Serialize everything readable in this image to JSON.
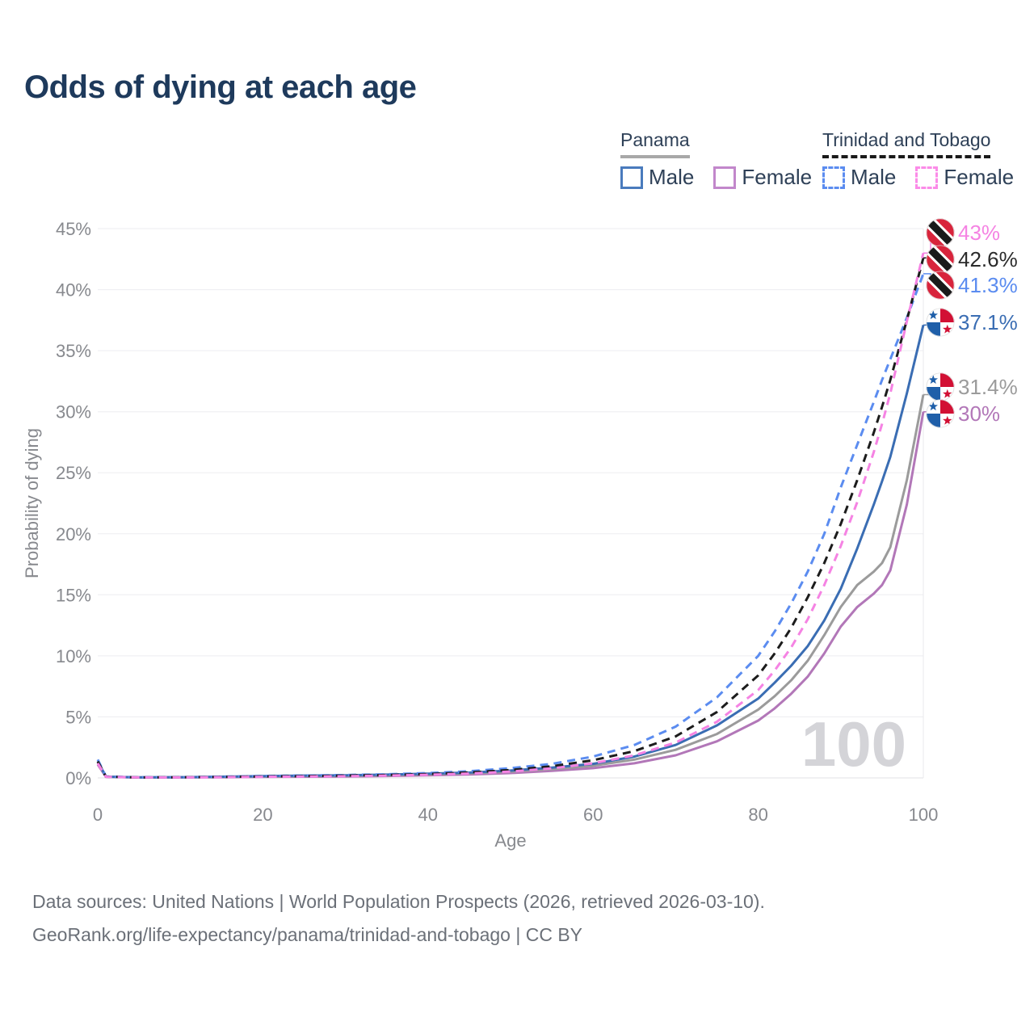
{
  "title": "Odds of dying at each age",
  "legend": {
    "groups": [
      {
        "label": "Panama",
        "line_style": "solid",
        "underline_color": "#a8a8a8",
        "items": [
          {
            "label": "Male",
            "color": "#4a7bbd"
          },
          {
            "label": "Female",
            "color": "#c287cb"
          }
        ]
      },
      {
        "label": "Trinidad and Tobago",
        "line_style": "dashed",
        "underline_color": "#1a1a1a",
        "items": [
          {
            "label": "Male",
            "color": "#5b8cf0"
          },
          {
            "label": "Female",
            "color": "#fb8be8"
          }
        ]
      }
    ]
  },
  "chart_data": {
    "type": "line",
    "title": "Odds of dying at each age",
    "xlabel": "Age",
    "ylabel": "Probability of dying",
    "xlim": [
      0,
      100
    ],
    "ylim": [
      0,
      45
    ],
    "xticks": [
      0,
      20,
      40,
      60,
      80,
      100
    ],
    "yticks": [
      0,
      5,
      10,
      15,
      20,
      25,
      30,
      35,
      40,
      45
    ],
    "ytick_suffix": "%",
    "grid": "horizontal",
    "legend_position": "top-right",
    "hover_age_label": "100",
    "x": [
      0,
      1,
      5,
      10,
      15,
      20,
      25,
      30,
      35,
      40,
      45,
      50,
      55,
      60,
      65,
      70,
      75,
      80,
      82,
      84,
      86,
      88,
      90,
      92,
      94,
      95,
      96,
      98,
      100
    ],
    "series": [
      {
        "id": "tt-female",
        "name": "Trinidad and Tobago — Female",
        "country": "tt",
        "color": "#f583e3",
        "label_color": "#f583e3",
        "dash": true,
        "end_label": "43%",
        "end_value": 43,
        "values": [
          1.2,
          0.09,
          0.04,
          0.04,
          0.06,
          0.09,
          0.11,
          0.14,
          0.19,
          0.26,
          0.36,
          0.52,
          0.78,
          1.2,
          1.85,
          2.9,
          4.6,
          7.2,
          8.8,
          10.7,
          13.0,
          15.8,
          19.0,
          22.6,
          26.7,
          29.0,
          31.5,
          37.4,
          43.0
        ]
      },
      {
        "id": "tt-both",
        "name": "Trinidad and Tobago — Both sexes",
        "country": "tt",
        "color": "#1c1c1c",
        "label_color": "#2b2b2b",
        "dash": true,
        "end_label": "42.6%",
        "end_value": 42.6,
        "values": [
          1.35,
          0.1,
          0.04,
          0.05,
          0.08,
          0.12,
          0.15,
          0.19,
          0.24,
          0.32,
          0.45,
          0.65,
          0.95,
          1.45,
          2.2,
          3.4,
          5.4,
          8.4,
          10.2,
          12.3,
          14.8,
          17.6,
          20.8,
          24.4,
          28.3,
          30.4,
          32.6,
          37.5,
          42.6
        ]
      },
      {
        "id": "tt-male",
        "name": "Trinidad and Tobago — Male",
        "country": "tt",
        "color": "#5b8cf0",
        "label_color": "#5b8cf0",
        "dash": true,
        "end_label": "41.3%",
        "end_value": 41.3,
        "values": [
          1.5,
          0.12,
          0.05,
          0.06,
          0.1,
          0.16,
          0.2,
          0.24,
          0.3,
          0.4,
          0.55,
          0.8,
          1.15,
          1.75,
          2.7,
          4.2,
          6.6,
          10.0,
          12.0,
          14.3,
          16.9,
          20.0,
          23.8,
          27.3,
          30.8,
          32.6,
          34.3,
          37.7,
          41.3
        ]
      },
      {
        "id": "panama-male",
        "name": "Panama — Male",
        "country": "panama",
        "color": "#3a6db3",
        "label_color": "#3a6db3",
        "dash": false,
        "end_label": "37.1%",
        "end_value": 37.1,
        "values": [
          1.35,
          0.1,
          0.05,
          0.06,
          0.1,
          0.15,
          0.19,
          0.22,
          0.27,
          0.35,
          0.44,
          0.6,
          0.85,
          1.15,
          1.75,
          2.7,
          4.3,
          6.5,
          7.8,
          9.2,
          10.8,
          12.9,
          15.5,
          18.8,
          22.4,
          24.3,
          26.3,
          31.5,
          37.1
        ]
      },
      {
        "id": "panama-both",
        "name": "Panama — Both sexes",
        "country": "panama",
        "color": "#9b9b9b",
        "label_color": "#9b9b9b",
        "dash": false,
        "end_label": "31.4%",
        "end_value": 31.4,
        "values": [
          1.25,
          0.09,
          0.04,
          0.05,
          0.08,
          0.12,
          0.15,
          0.18,
          0.22,
          0.29,
          0.38,
          0.52,
          0.72,
          1.0,
          1.5,
          2.3,
          3.6,
          5.6,
          6.7,
          8.0,
          9.6,
          11.7,
          14.0,
          15.8,
          16.9,
          17.6,
          18.9,
          24.4,
          31.4
        ]
      },
      {
        "id": "panama-female",
        "name": "Panama — Female",
        "country": "panama",
        "color": "#b277b8",
        "label_color": "#b277b8",
        "dash": false,
        "end_label": "30%",
        "end_value": 30,
        "values": [
          1.1,
          0.08,
          0.03,
          0.04,
          0.05,
          0.08,
          0.1,
          0.12,
          0.16,
          0.21,
          0.28,
          0.4,
          0.58,
          0.8,
          1.2,
          1.85,
          3.0,
          4.7,
          5.7,
          6.9,
          8.3,
          10.2,
          12.4,
          14.0,
          15.1,
          15.8,
          17.0,
          22.4,
          30.0
        ]
      }
    ]
  },
  "flag_colors": {
    "tt_red": "#d8243c",
    "tt_black": "#1a1a1a",
    "panama_red": "#d21034",
    "panama_blue": "#1f5fa9"
  },
  "footer": {
    "line1": "Data sources: United Nations | World Population Prospects (2026, retrieved 2026-03-10).",
    "line2": "GeoRank.org/life-expectancy/panama/trinidad-and-tobago | CC BY"
  }
}
